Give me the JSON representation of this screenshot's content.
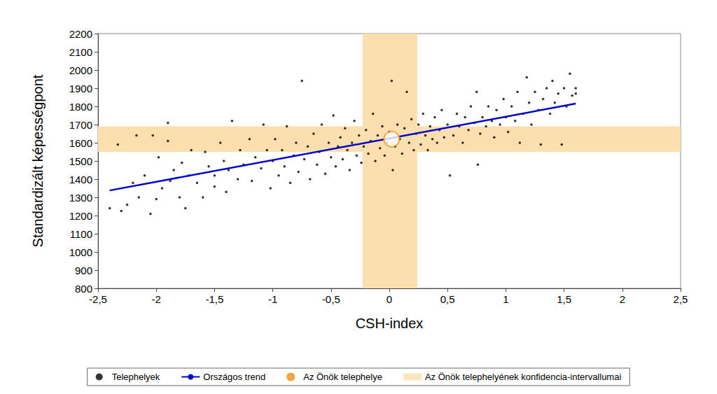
{
  "chart_data": {
    "type": "scatter",
    "x_label": "CSH-index",
    "y_label": "Standardizált képességpont",
    "xlim": [
      -2.5,
      2.5
    ],
    "xticks": [
      {
        "value": -2.5,
        "label": "-2,5"
      },
      -2,
      {
        "value": -1.5,
        "label": "-1,5"
      },
      -1,
      {
        "value": -0.5,
        "label": "-0,5"
      },
      0,
      {
        "value": 0.5,
        "label": "0,5"
      },
      1,
      {
        "value": 1.5,
        "label": "1,5"
      },
      2,
      {
        "value": 2.5,
        "label": "2,5"
      }
    ],
    "ylim": [
      800,
      2200
    ],
    "yticks": [
      800,
      900,
      1000,
      1100,
      1200,
      1300,
      1400,
      1500,
      1600,
      1700,
      1800,
      1900,
      2000,
      2100,
      2200
    ],
    "grid": false,
    "legend": "bottom",
    "series": [
      {
        "name": "Telephelyek",
        "type": "scatter",
        "color": "#000000",
        "marker": "circle",
        "x": [
          -2.4,
          -2.33,
          -2.3,
          -2.25,
          -2.2,
          -2.17,
          -2.15,
          -2.1,
          -2.05,
          -2.03,
          -2.0,
          -1.98,
          -1.95,
          -1.9,
          -1.9,
          -1.88,
          -1.85,
          -1.8,
          -1.78,
          -1.75,
          -1.72,
          -1.7,
          -1.65,
          -1.6,
          -1.58,
          -1.55,
          -1.5,
          -1.5,
          -1.45,
          -1.42,
          -1.4,
          -1.38,
          -1.35,
          -1.3,
          -1.28,
          -1.25,
          -1.2,
          -1.18,
          -1.15,
          -1.1,
          -1.08,
          -1.05,
          -1.02,
          -1.0,
          -0.98,
          -0.95,
          -0.92,
          -0.9,
          -0.88,
          -0.85,
          -0.82,
          -0.8,
          -0.78,
          -0.75,
          -0.73,
          -0.7,
          -0.68,
          -0.65,
          -0.62,
          -0.6,
          -0.58,
          -0.55,
          -0.52,
          -0.5,
          -0.48,
          -0.46,
          -0.44,
          -0.42,
          -0.4,
          -0.38,
          -0.36,
          -0.34,
          -0.32,
          -0.3,
          -0.28,
          -0.26,
          -0.24,
          -0.22,
          -0.2,
          -0.18,
          -0.16,
          -0.14,
          -0.12,
          -0.1,
          -0.08,
          -0.06,
          -0.04,
          -0.02,
          0.0,
          0.02,
          0.03,
          0.05,
          0.07,
          0.09,
          0.11,
          0.13,
          0.15,
          0.17,
          0.19,
          0.21,
          0.23,
          0.25,
          0.27,
          0.29,
          0.31,
          0.33,
          0.35,
          0.37,
          0.39,
          0.41,
          0.43,
          0.45,
          0.47,
          0.5,
          0.52,
          0.55,
          0.58,
          0.6,
          0.63,
          0.65,
          0.68,
          0.7,
          0.73,
          0.75,
          0.76,
          0.78,
          0.8,
          0.83,
          0.85,
          0.88,
          0.9,
          0.92,
          0.95,
          0.98,
          1.0,
          1.02,
          1.05,
          1.08,
          1.1,
          1.12,
          1.15,
          1.18,
          1.2,
          1.22,
          1.25,
          1.28,
          1.3,
          1.32,
          1.35,
          1.38,
          1.4,
          1.42,
          1.45,
          1.48,
          1.5,
          1.52,
          1.55,
          1.57,
          1.6,
          1.6
        ],
        "values": [
          1240,
          1590,
          1225,
          1260,
          1380,
          1640,
          1300,
          1420,
          1210,
          1640,
          1290,
          1520,
          1350,
          1710,
          1610,
          1390,
          1450,
          1300,
          1490,
          1240,
          1420,
          1560,
          1380,
          1300,
          1550,
          1470,
          1360,
          1420,
          1600,
          1500,
          1330,
          1450,
          1720,
          1400,
          1560,
          1480,
          1620,
          1390,
          1520,
          1460,
          1700,
          1560,
          1350,
          1500,
          1620,
          1420,
          1560,
          1470,
          1690,
          1380,
          1530,
          1600,
          1440,
          1940,
          1510,
          1580,
          1400,
          1650,
          1480,
          1550,
          1700,
          1430,
          1600,
          1520,
          1750,
          1470,
          1580,
          1630,
          1510,
          1680,
          1560,
          1450,
          1600,
          1720,
          1530,
          1640,
          1490,
          1580,
          1670,
          1540,
          1610,
          1760,
          1500,
          1640,
          1570,
          1690,
          1530,
          1600,
          1660,
          1940,
          1450,
          1580,
          1700,
          1620,
          1540,
          1680,
          1880,
          1600,
          1730,
          1560,
          1650,
          1700,
          1590,
          1760,
          1640,
          1560,
          1690,
          1620,
          1740,
          1600,
          1670,
          1780,
          1630,
          1700,
          1420,
          1640,
          1760,
          1690,
          1600,
          1740,
          1670,
          1800,
          1710,
          1880,
          1480,
          1650,
          1740,
          1690,
          1800,
          1720,
          1630,
          1780,
          1700,
          1840,
          1740,
          1660,
          1800,
          1720,
          1880,
          1600,
          1760,
          1960,
          1820,
          1700,
          1880,
          1780,
          1590,
          1840,
          1900,
          1760,
          1940,
          1820,
          1870,
          1590,
          1900,
          1800,
          1980,
          1860,
          1900,
          1870
        ]
      },
      {
        "name": "Országos trend",
        "type": "line",
        "color": "#0000cc",
        "line_style": "solid",
        "x": [
          -2.4,
          1.6
        ],
        "values": [
          1338,
          1815
        ]
      },
      {
        "name": "Az Önök telephelye",
        "type": "scatter",
        "color": "#f7941d",
        "marker": "ring",
        "x": [
          0.02
        ],
        "values": [
          1620
        ]
      },
      {
        "name": "Az Önök telephelyének konfidencia-intervallumai",
        "type": "band",
        "color": "#fbdfae",
        "x_interval": [
          -0.23,
          0.24
        ],
        "y_interval": [
          1550,
          1690
        ]
      }
    ]
  }
}
